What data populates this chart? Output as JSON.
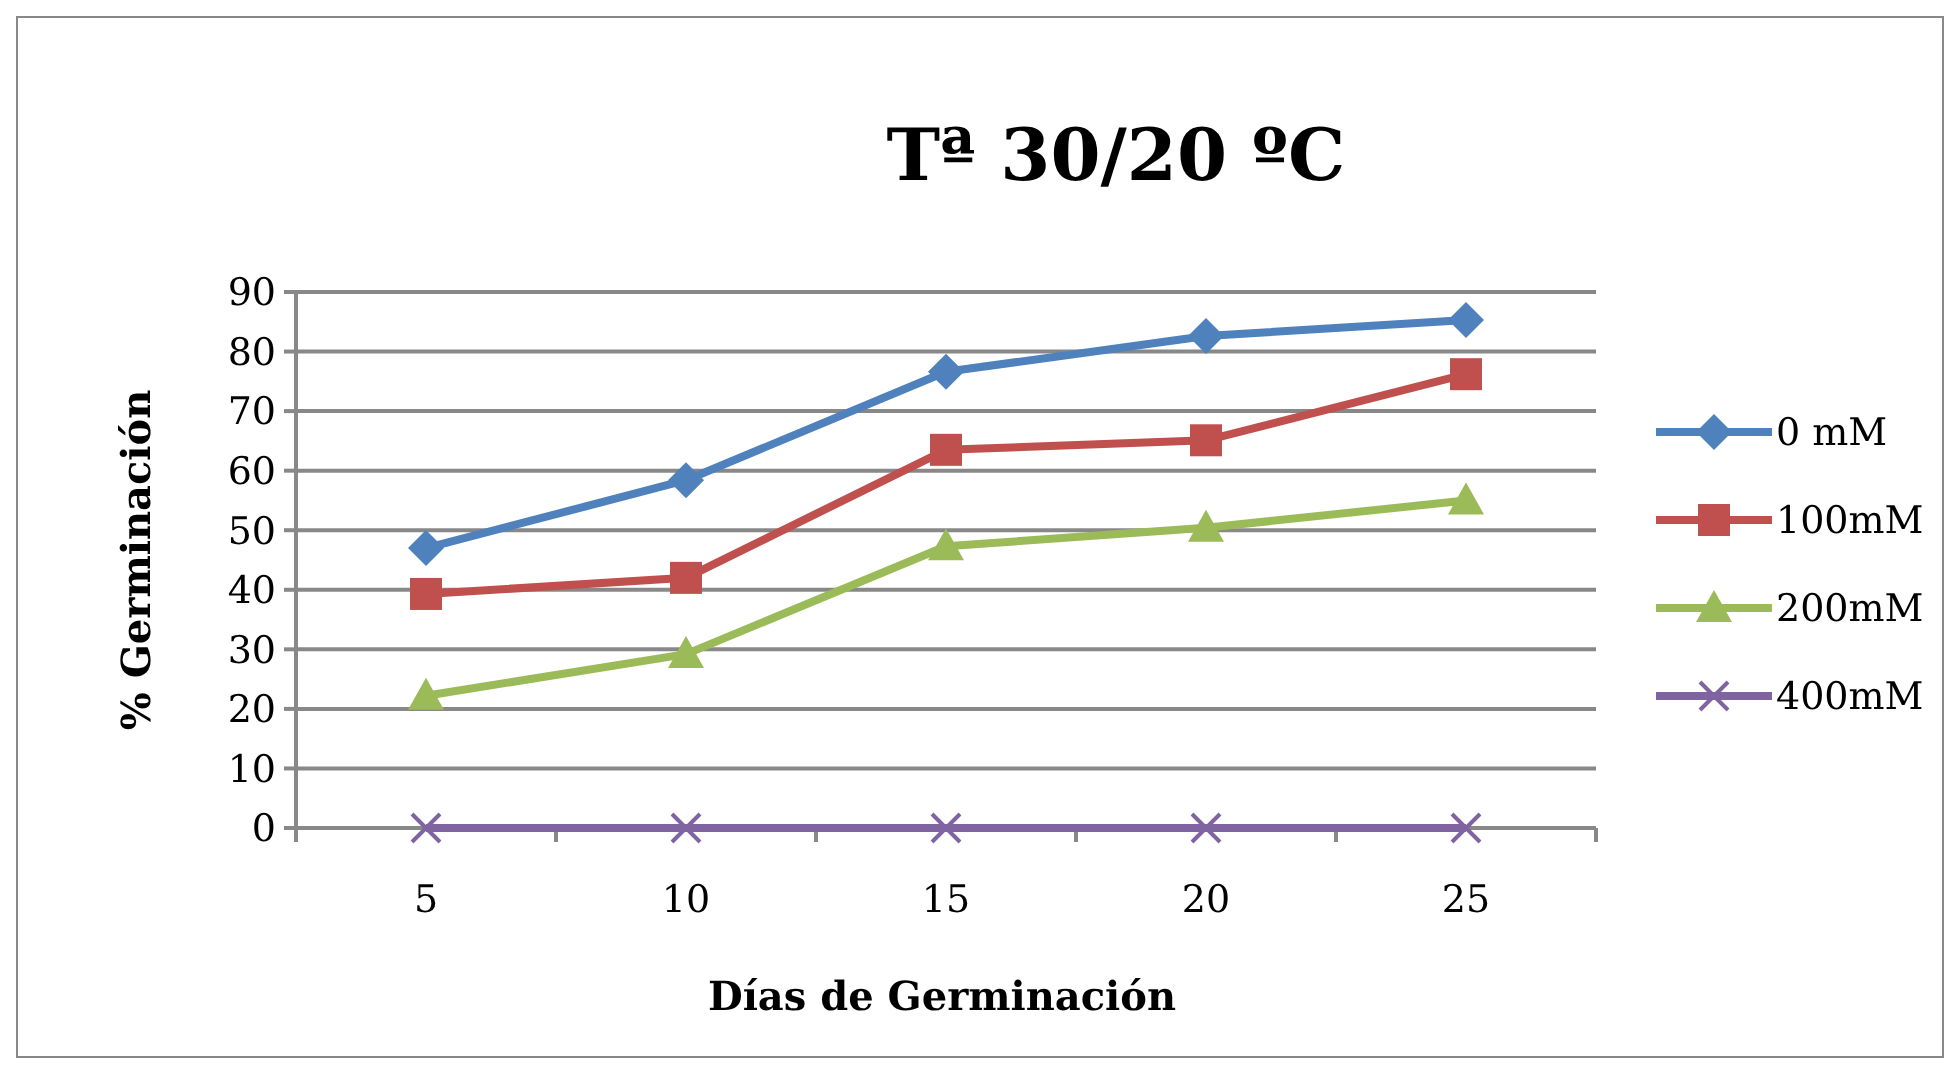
{
  "chart_data": {
    "type": "line",
    "title": "Tª 30/20 ºC",
    "xlabel": "Días de Germinación",
    "ylabel": "% Germinación",
    "categories": [
      "5",
      "10",
      "15",
      "20",
      "25"
    ],
    "ylim": [
      0,
      90
    ],
    "yticks": [
      0,
      10,
      20,
      30,
      40,
      50,
      60,
      70,
      80,
      90
    ],
    "grid": "y",
    "legend": "right",
    "series": [
      {
        "name": "0 mM",
        "color": "#4f81bd",
        "marker": "diamond",
        "values": [
          47,
          58.4,
          76.6,
          82.6,
          85.3
        ]
      },
      {
        "name": "100mM",
        "color": "#c0504d",
        "marker": "square",
        "values": [
          39.3,
          42,
          63.5,
          65.1,
          76.2
        ]
      },
      {
        "name": "200mM",
        "color": "#9bbb59",
        "marker": "triangle",
        "values": [
          22.2,
          29.2,
          47.3,
          50.4,
          55
        ]
      },
      {
        "name": "400mM",
        "color": "#8064a2",
        "marker": "cross",
        "values": [
          0,
          0,
          0,
          0,
          0
        ]
      }
    ]
  }
}
